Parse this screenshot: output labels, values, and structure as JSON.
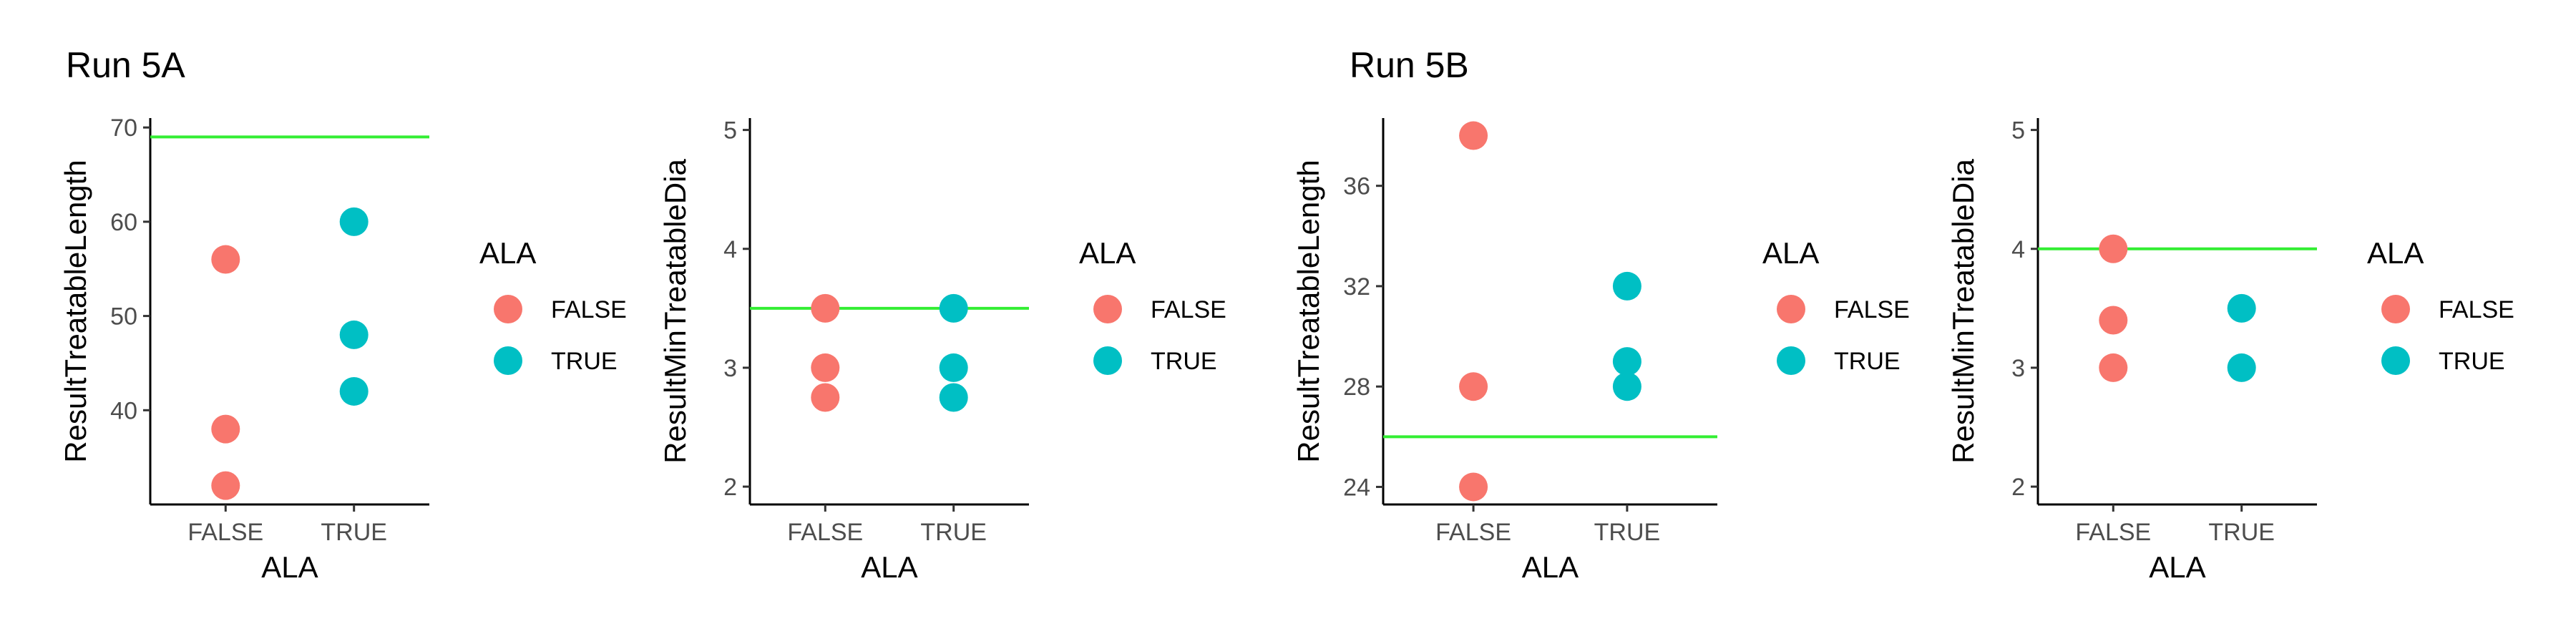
{
  "chart_data": [
    {
      "type": "scatter",
      "title": "Run 5A",
      "xlabel": "ALA",
      "ylabel": "ResultTreatableLength",
      "categories": [
        "FALSE",
        "TRUE"
      ],
      "ylim": [
        30,
        71
      ],
      "yticks": [
        40,
        50,
        60,
        70
      ],
      "hline": 69,
      "hline_color": "#33ee33",
      "grid": false,
      "legend": {
        "title": "ALA",
        "position": "right",
        "entries": [
          "FALSE",
          "TRUE"
        ]
      },
      "series": [
        {
          "values": [
            {
              "x": "FALSE",
              "y": 56
            },
            {
              "x": "FALSE",
              "y": 38
            },
            {
              "x": "FALSE",
              "y": 32
            }
          ]
        },
        {
          "values": [
            {
              "x": "TRUE",
              "y": 60
            },
            {
              "x": "TRUE",
              "y": 48
            },
            {
              "x": "TRUE",
              "y": 42
            }
          ]
        }
      ]
    },
    {
      "type": "scatter",
      "title": "",
      "xlabel": "ALA",
      "ylabel": "ResultMinTreatableDia",
      "categories": [
        "FALSE",
        "TRUE"
      ],
      "ylim": [
        1.85,
        5.1
      ],
      "yticks": [
        2,
        3,
        4,
        5
      ],
      "hline": 3.5,
      "hline_color": "#33ee33",
      "grid": false,
      "legend": {
        "title": "ALA",
        "position": "right",
        "entries": [
          "FALSE",
          "TRUE"
        ]
      },
      "series": [
        {
          "values": [
            {
              "x": "FALSE",
              "y": 3.5
            },
            {
              "x": "FALSE",
              "y": 3.0
            },
            {
              "x": "FALSE",
              "y": 2.75
            }
          ]
        },
        {
          "values": [
            {
              "x": "TRUE",
              "y": 3.5
            },
            {
              "x": "TRUE",
              "y": 3.0
            },
            {
              "x": "TRUE",
              "y": 2.75
            }
          ]
        }
      ]
    },
    {
      "type": "scatter",
      "title": "Run 5B",
      "xlabel": "ALA",
      "ylabel": "ResultTreatableLength",
      "categories": [
        "FALSE",
        "TRUE"
      ],
      "ylim": [
        23.3,
        38.7
      ],
      "yticks": [
        24,
        28,
        32,
        36
      ],
      "hline": 26,
      "hline_color": "#33ee33",
      "grid": false,
      "legend": {
        "title": "ALA",
        "position": "right",
        "entries": [
          "FALSE",
          "TRUE"
        ]
      },
      "series": [
        {
          "values": [
            {
              "x": "FALSE",
              "y": 38
            },
            {
              "x": "FALSE",
              "y": 28
            },
            {
              "x": "FALSE",
              "y": 24
            }
          ]
        },
        {
          "values": [
            {
              "x": "TRUE",
              "y": 32
            },
            {
              "x": "TRUE",
              "y": 29
            },
            {
              "x": "TRUE",
              "y": 28
            }
          ]
        }
      ]
    },
    {
      "type": "scatter",
      "title": "",
      "xlabel": "ALA",
      "ylabel": "ResultMinTreatableDia",
      "categories": [
        "FALSE",
        "TRUE"
      ],
      "ylim": [
        1.85,
        5.1
      ],
      "yticks": [
        2,
        3,
        4,
        5
      ],
      "hline": 4,
      "hline_color": "#33ee33",
      "grid": false,
      "legend": {
        "title": "ALA",
        "position": "right",
        "entries": [
          "FALSE",
          "TRUE"
        ]
      },
      "series": [
        {
          "values": [
            {
              "x": "FALSE",
              "y": 4.0
            },
            {
              "x": "FALSE",
              "y": 3.4
            },
            {
              "x": "FALSE",
              "y": 3.0
            }
          ]
        },
        {
          "values": [
            {
              "x": "TRUE",
              "y": 3.5
            },
            {
              "x": "TRUE",
              "y": 3.0
            }
          ]
        }
      ]
    }
  ],
  "colors": {
    "FALSE": "#f8766d",
    "TRUE": "#00bfc4"
  }
}
